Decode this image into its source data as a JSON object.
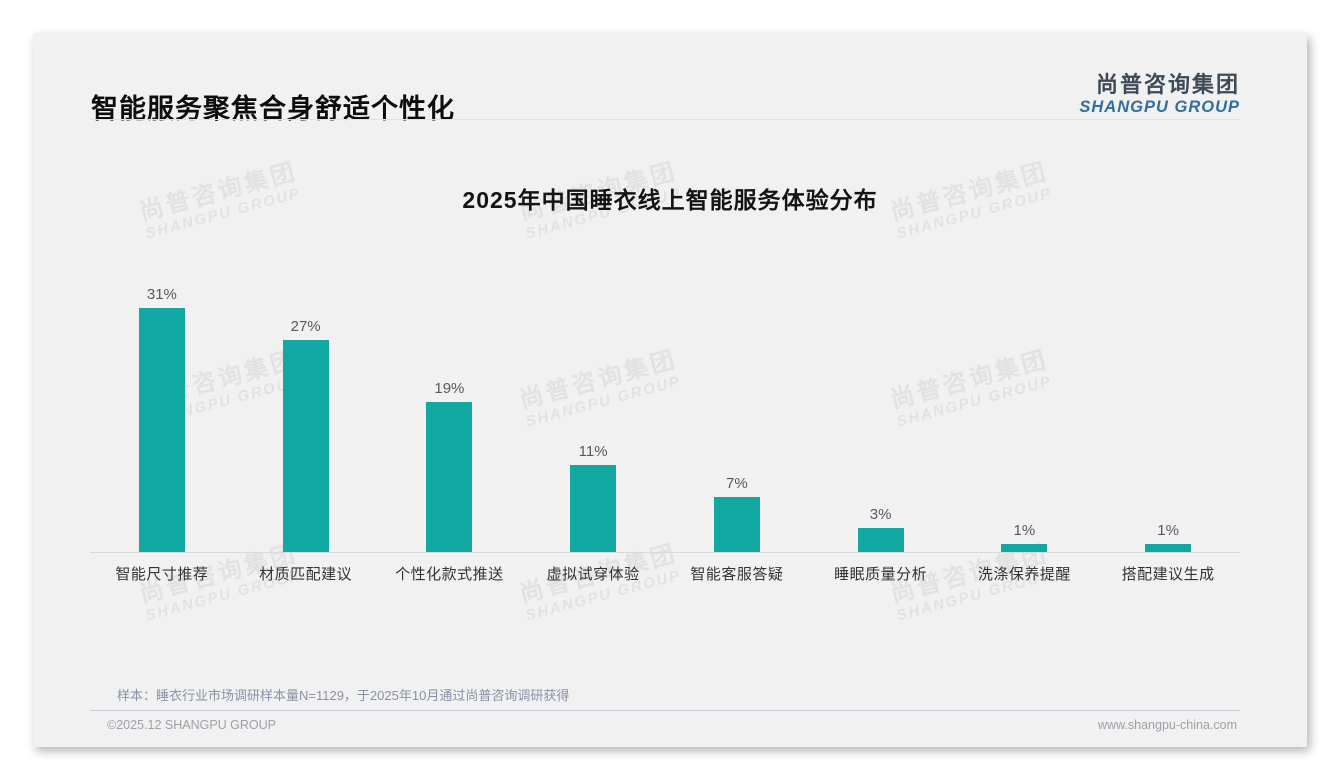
{
  "header": {
    "title": "智能服务聚焦合身舒适个性化",
    "logo_cn": "尚普咨询集团",
    "logo_en": "SHANGPU GROUP"
  },
  "chart_data": {
    "type": "bar",
    "title": "2025年中国睡衣线上智能服务体验分布",
    "categories": [
      "智能尺寸推荐",
      "材质匹配建议",
      "个性化款式推送",
      "虚拟试穿体验",
      "智能客服答疑",
      "睡眠质量分析",
      "洗涤保养提醒",
      "搭配建议生成"
    ],
    "values": [
      31,
      27,
      19,
      11,
      7,
      3,
      1,
      1
    ],
    "unit": "%",
    "xlabel": "",
    "ylabel": "",
    "ylim": [
      0,
      33
    ],
    "grid": false,
    "legend": "none",
    "bar_color": "#10A8A0",
    "value_label_color": "#595959",
    "category_label_color": "#333333"
  },
  "watermark": {
    "line1": "尚普咨询集团",
    "line2": "SHANGPU GROUP"
  },
  "footer": {
    "note": "样本：睡衣行业市场调研样本量N=1129，于2025年10月通过尚普咨询调研获得",
    "copyright": "©2025.12 SHANGPU GROUP",
    "website": "www.shangpu-china.com"
  },
  "colors": {
    "card_bg": "#F1F1F2",
    "bar": "#10A8A0",
    "logo_cn": "#3E4A58",
    "logo_en": "#2F6EA5",
    "watermark": "#E1E2E4"
  }
}
